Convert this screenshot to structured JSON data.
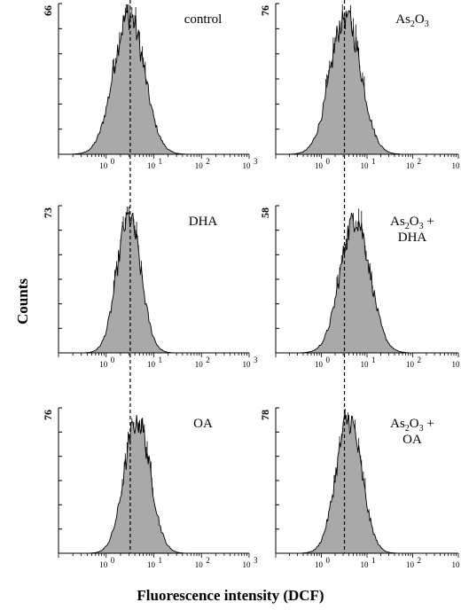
{
  "chart_data": {
    "type": "area",
    "y_axis_label": "Counts",
    "x_axis_label": "Fluorescence intensity (DCF)",
    "x_scale": "log",
    "x_range": [
      0.1,
      1000
    ],
    "x_ticks": [
      "10",
      "10",
      "10",
      "10"
    ],
    "x_tick_exponents": [
      "0",
      "1",
      "2",
      "3"
    ],
    "reference_line_x": 3.2,
    "fill_color": "#a9a9a9",
    "panels": [
      {
        "label": [
          "control"
        ],
        "y_max": "66",
        "peak_x": 3.0,
        "width": 0.32
      },
      {
        "label": [
          "As2O3"
        ],
        "y_max": "76",
        "peak_x": 3.4,
        "width": 0.33
      },
      {
        "label": [
          "DHA"
        ],
        "y_max": "73",
        "peak_x": 3.0,
        "width": 0.25
      },
      {
        "label": [
          "As2O3 +",
          "DHA"
        ],
        "y_max": "58",
        "peak_x": 5.5,
        "width": 0.32
      },
      {
        "label": [
          "OA"
        ],
        "y_max": "76",
        "peak_x": 4.5,
        "width": 0.27
      },
      {
        "label": [
          "As2O3 +",
          "OA"
        ],
        "y_max": "78",
        "peak_x": 4.0,
        "width": 0.28
      }
    ]
  }
}
